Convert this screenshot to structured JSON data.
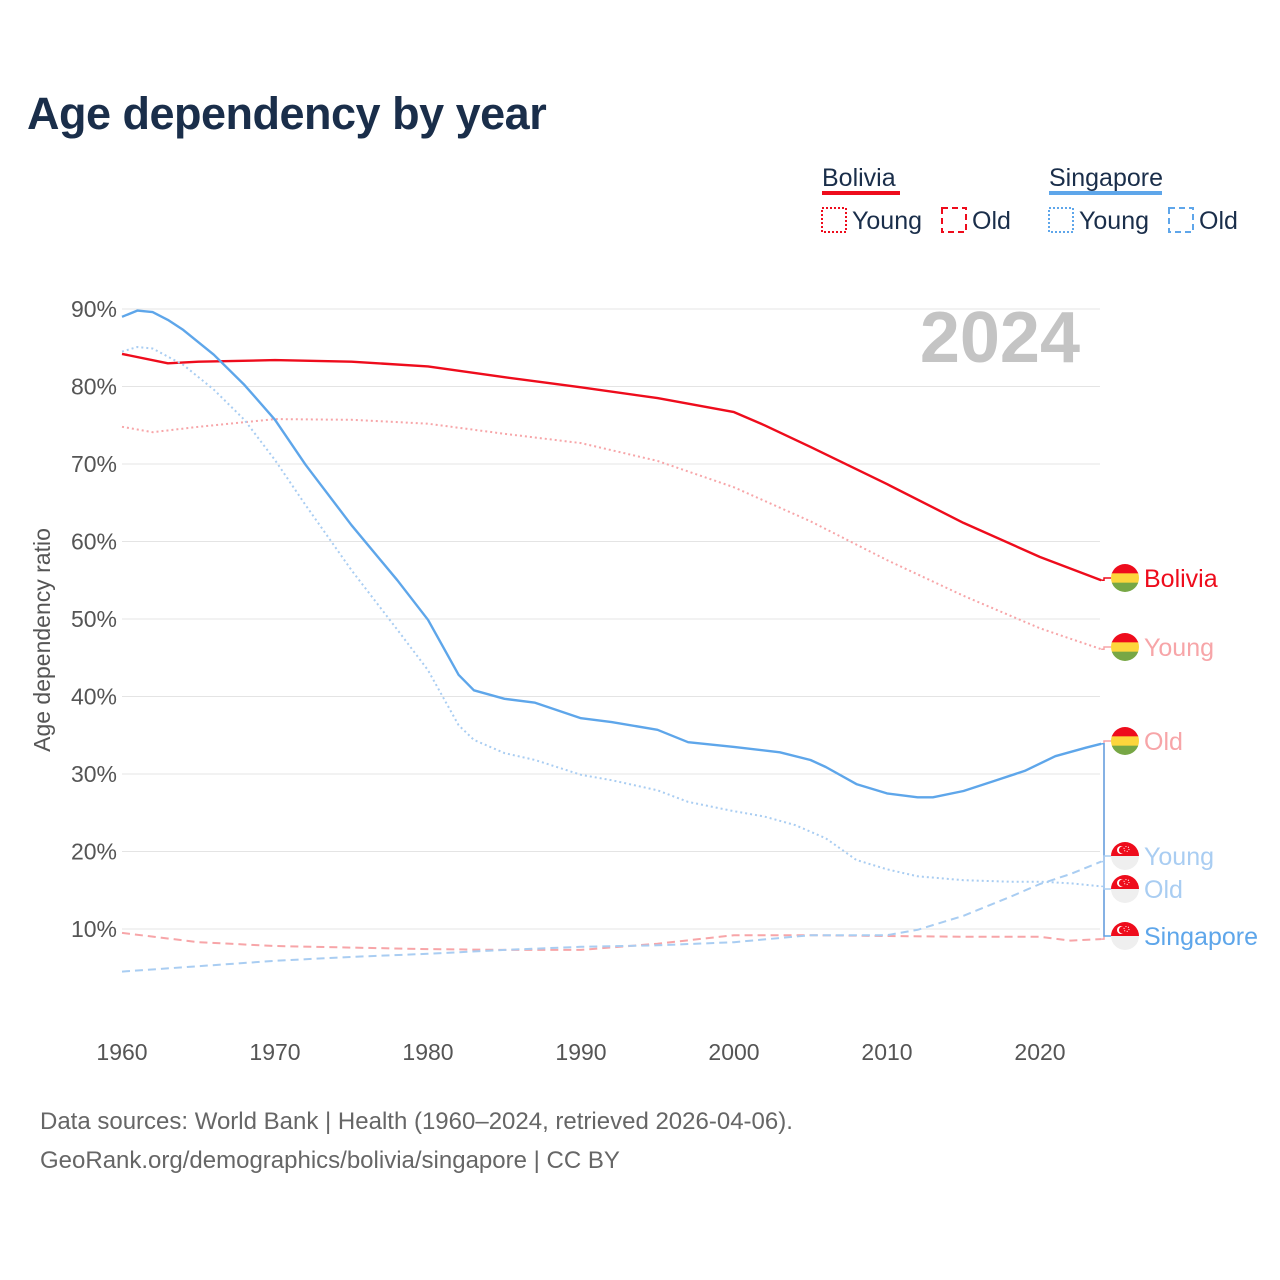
{
  "title": "Age dependency by year",
  "footer": {
    "line1": "Data sources: World Bank | Health (1960–2024, retrieved 2026-04-06).",
    "line2": "GeoRank.org/demographics/bolivia/singapore | CC BY"
  },
  "colors": {
    "bolivia": "#ee0c1c",
    "bolivia_light": "#f7a5a8",
    "singapore": "#5ea6ea",
    "singapore_light": "#a9cdf2",
    "grid": "#e4e4e4",
    "axis_text": "#555555",
    "year": "#c4c4c4"
  },
  "chart_data": {
    "type": "line",
    "title": "Age dependency by year",
    "xlabel": "",
    "ylabel": "Age dependency ratio",
    "year_watermark": "2024",
    "xlim": [
      1960,
      2024
    ],
    "ylim": [
      0,
      90
    ],
    "xticks": [
      "1960",
      "1970",
      "1980",
      "1990",
      "2000",
      "2010",
      "2020"
    ],
    "yticks": [
      "10%",
      "20%",
      "30%",
      "40%",
      "50%",
      "60%",
      "70%",
      "80%",
      "90%"
    ],
    "grid": true,
    "legend": {
      "placement": "top-right",
      "groups": [
        {
          "country": "Bolivia",
          "items": [
            "Young",
            "Old"
          ]
        },
        {
          "country": "Singapore",
          "items": [
            "Young",
            "Old"
          ]
        }
      ]
    },
    "series": [
      {
        "name": "Bolivia",
        "country": "Bolivia",
        "kind": "total",
        "end_label": "Bolivia",
        "points": [
          [
            1960,
            84.2
          ],
          [
            1963,
            83.0
          ],
          [
            1965,
            83.2
          ],
          [
            1970,
            83.4
          ],
          [
            1975,
            83.2
          ],
          [
            1980,
            82.6
          ],
          [
            1985,
            81.2
          ],
          [
            1990,
            79.9
          ],
          [
            1995,
            78.5
          ],
          [
            2000,
            76.7
          ],
          [
            2002,
            75.0
          ],
          [
            2005,
            72.2
          ],
          [
            2010,
            67.4
          ],
          [
            2015,
            62.4
          ],
          [
            2020,
            58.0
          ],
          [
            2024,
            55.0
          ]
        ]
      },
      {
        "name": "Bolivia Young",
        "country": "Bolivia",
        "kind": "young",
        "end_label": "Young",
        "points": [
          [
            1960,
            74.8
          ],
          [
            1962,
            74.1
          ],
          [
            1965,
            74.8
          ],
          [
            1970,
            75.8
          ],
          [
            1975,
            75.7
          ],
          [
            1980,
            75.2
          ],
          [
            1985,
            73.9
          ],
          [
            1990,
            72.7
          ],
          [
            1995,
            70.4
          ],
          [
            2000,
            67.0
          ],
          [
            2005,
            62.6
          ],
          [
            2010,
            57.6
          ],
          [
            2015,
            53.0
          ],
          [
            2020,
            48.8
          ],
          [
            2024,
            46.1
          ]
        ]
      },
      {
        "name": "Bolivia Old",
        "country": "Bolivia",
        "kind": "old",
        "end_label": "Old",
        "points": [
          [
            1960,
            9.5
          ],
          [
            1965,
            8.3
          ],
          [
            1970,
            7.8
          ],
          [
            1975,
            7.6
          ],
          [
            1980,
            7.4
          ],
          [
            1985,
            7.3
          ],
          [
            1990,
            7.3
          ],
          [
            1995,
            8.1
          ],
          [
            2000,
            9.2
          ],
          [
            2005,
            9.2
          ],
          [
            2010,
            9.1
          ],
          [
            2015,
            9.0
          ],
          [
            2020,
            9.0
          ],
          [
            2022,
            8.5
          ],
          [
            2024,
            8.7
          ]
        ]
      },
      {
        "name": "Singapore",
        "country": "Singapore",
        "kind": "total",
        "end_label": "Singapore",
        "points": [
          [
            1960,
            89.0
          ],
          [
            1961,
            89.8
          ],
          [
            1962,
            89.6
          ],
          [
            1963,
            88.6
          ],
          [
            1964,
            87.3
          ],
          [
            1966,
            84.1
          ],
          [
            1968,
            80.2
          ],
          [
            1970,
            75.7
          ],
          [
            1972,
            69.9
          ],
          [
            1975,
            62.1
          ],
          [
            1978,
            55.0
          ],
          [
            1980,
            49.9
          ],
          [
            1982,
            42.8
          ],
          [
            1983,
            40.8
          ],
          [
            1985,
            39.7
          ],
          [
            1987,
            39.2
          ],
          [
            1990,
            37.2
          ],
          [
            1992,
            36.7
          ],
          [
            1995,
            35.7
          ],
          [
            1997,
            34.1
          ],
          [
            2000,
            33.5
          ],
          [
            2003,
            32.8
          ],
          [
            2005,
            31.8
          ],
          [
            2006,
            30.9
          ],
          [
            2008,
            28.7
          ],
          [
            2010,
            27.5
          ],
          [
            2012,
            27.0
          ],
          [
            2013,
            27.0
          ],
          [
            2015,
            27.8
          ],
          [
            2017,
            29.1
          ],
          [
            2019,
            30.4
          ],
          [
            2021,
            32.3
          ],
          [
            2023,
            33.4
          ],
          [
            2024,
            33.9
          ]
        ]
      },
      {
        "name": "Singapore Young",
        "country": "Singapore",
        "kind": "young",
        "end_label": "Young",
        "points": [
          [
            1960,
            84.5
          ],
          [
            1961,
            85.1
          ],
          [
            1962,
            84.9
          ],
          [
            1964,
            82.8
          ],
          [
            1966,
            79.6
          ],
          [
            1968,
            75.7
          ],
          [
            1970,
            70.5
          ],
          [
            1972,
            64.7
          ],
          [
            1975,
            56.3
          ],
          [
            1978,
            48.6
          ],
          [
            1980,
            43.4
          ],
          [
            1982,
            36.3
          ],
          [
            1983,
            34.4
          ],
          [
            1985,
            32.7
          ],
          [
            1987,
            31.8
          ],
          [
            1990,
            29.9
          ],
          [
            1992,
            29.2
          ],
          [
            1995,
            27.9
          ],
          [
            1997,
            26.4
          ],
          [
            2000,
            25.2
          ],
          [
            2002,
            24.5
          ],
          [
            2004,
            23.4
          ],
          [
            2006,
            21.7
          ],
          [
            2008,
            18.9
          ],
          [
            2010,
            17.7
          ],
          [
            2012,
            16.8
          ],
          [
            2015,
            16.3
          ],
          [
            2018,
            16.1
          ],
          [
            2020,
            16.1
          ],
          [
            2022,
            15.9
          ],
          [
            2024,
            15.5
          ]
        ]
      },
      {
        "name": "Singapore Old",
        "country": "Singapore",
        "kind": "old",
        "end_label": "Old",
        "points": [
          [
            1960,
            4.5
          ],
          [
            1965,
            5.2
          ],
          [
            1970,
            5.9
          ],
          [
            1975,
            6.4
          ],
          [
            1980,
            6.8
          ],
          [
            1985,
            7.3
          ],
          [
            1990,
            7.7
          ],
          [
            1995,
            7.9
          ],
          [
            2000,
            8.3
          ],
          [
            2005,
            9.2
          ],
          [
            2010,
            9.2
          ],
          [
            2012,
            9.9
          ],
          [
            2015,
            11.7
          ],
          [
            2018,
            14.1
          ],
          [
            2020,
            15.8
          ],
          [
            2022,
            17.1
          ],
          [
            2024,
            18.7
          ]
        ]
      }
    ]
  }
}
